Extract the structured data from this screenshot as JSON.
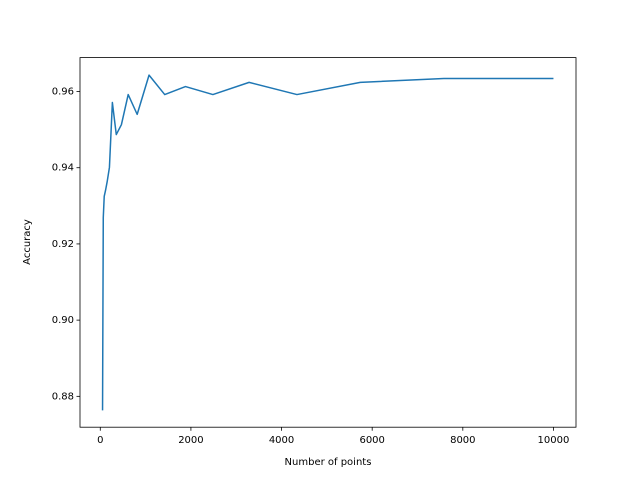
{
  "chart_data": {
    "type": "line",
    "xlabel": "Number of points",
    "ylabel": "Accuracy",
    "x": [
      50,
      66,
      87,
      115,
      153,
      202,
      267,
      353,
      466,
      616,
      814,
      1076,
      1422,
      1880,
      2485,
      3284,
      4340,
      5737,
      7582,
      10000
    ],
    "series": [
      {
        "color": "#1f77b4",
        "values": [
          0.8763,
          0.9269,
          0.9325,
          0.934,
          0.9364,
          0.9401,
          0.9571,
          0.9487,
          0.9513,
          0.9592,
          0.954,
          0.9643,
          0.9592,
          0.9613,
          0.9592,
          0.9624,
          0.9592,
          0.9624,
          0.9634,
          0.9634
        ]
      }
    ],
    "xlim": [
      -447.5,
      10497.5
    ],
    "xticks": [
      0,
      2000,
      4000,
      6000,
      8000,
      10000
    ],
    "ylim": [
      0.8719,
      0.9689
    ],
    "yticks": [
      0.88,
      {
        "value": 0.9,
        "label": "0.90"
      },
      0.92,
      0.94,
      0.96
    ]
  }
}
